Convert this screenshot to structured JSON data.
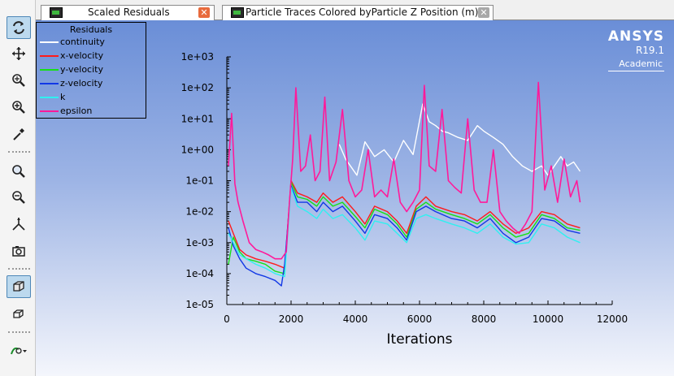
{
  "toolbar": {
    "buttons": [
      {
        "name": "rotate-view-button",
        "glyph": "rotate-icon",
        "active": true
      },
      {
        "name": "pan-button",
        "glyph": "pan-icon",
        "active": false
      },
      {
        "name": "zoom-in-out-button",
        "glyph": "zoom-icon",
        "active": false
      },
      {
        "name": "zoom-to-area-button",
        "glyph": "zoom-plus-icon",
        "active": false
      },
      {
        "name": "probe-button",
        "glyph": "eyedropper-icon",
        "active": false
      },
      {
        "name": "fit-to-window-button",
        "glyph": "zoom-fit-icon",
        "active": false
      },
      {
        "name": "zoom-out-button",
        "glyph": "zoom-minus-icon",
        "active": false
      },
      {
        "name": "axes-button",
        "glyph": "axes-icon",
        "active": false
      },
      {
        "name": "snapshot-button",
        "glyph": "camera-icon",
        "active": false
      },
      {
        "name": "perspective-view-button",
        "glyph": "cube-solid-icon",
        "active": true
      },
      {
        "name": "orthographic-view-button",
        "glyph": "cube-outline-icon",
        "active": false
      },
      {
        "name": "lights-dropdown-button",
        "glyph": "lights-icon",
        "active": false
      }
    ]
  },
  "tabs": [
    {
      "label": "Scaled Residuals",
      "active": true,
      "close_color": "#e86a3c"
    },
    {
      "label": "Particle Traces Colored byParticle Z Position (m)",
      "active": false,
      "close_color": "#a8a8a8"
    }
  ],
  "brand": {
    "name": "ANSYS",
    "version": "R19.1",
    "edition": "Academic"
  },
  "legend": {
    "title": "Residuals",
    "items": [
      {
        "label": "continuity",
        "color": "#ffffff"
      },
      {
        "label": "x-velocity",
        "color": "#ff1a1a"
      },
      {
        "label": "y-velocity",
        "color": "#16e016"
      },
      {
        "label": "z-velocity",
        "color": "#1238e6"
      },
      {
        "label": "k",
        "color": "#30f0f0"
      },
      {
        "label": "epsilon",
        "color": "#ff1a9a"
      }
    ]
  },
  "chart_data": {
    "type": "line",
    "xlabel": "Iterations",
    "ylabel": "",
    "y_scale": "log",
    "xlim": [
      0,
      12000
    ],
    "ylim": [
      1e-05,
      1000
    ],
    "x_ticks": [
      "0",
      "2000",
      "4000",
      "6000",
      "8000",
      "10000",
      "12000"
    ],
    "y_ticks": [
      "1e+03",
      "1e+02",
      "1e+01",
      "1e+00",
      "1e-01",
      "1e-02",
      "1e-03",
      "1e-04",
      "1e-05"
    ],
    "series": [
      {
        "name": "continuity",
        "color": "#ffffff",
        "x": [
          3500,
          3700,
          3900,
          4050,
          4300,
          4600,
          4900,
          5200,
          5500,
          5800,
          6100,
          6300,
          6500,
          6700,
          6900,
          7200,
          7500,
          7800,
          8000,
          8300,
          8600,
          8900,
          9200,
          9500,
          9800,
          10000,
          10200,
          10400,
          10600,
          10800,
          11000
        ],
        "y": [
          1.5,
          0.5,
          0.25,
          0.15,
          1.8,
          0.6,
          1.0,
          0.4,
          2.0,
          0.7,
          30,
          8,
          6,
          4,
          3.5,
          2.5,
          2.0,
          6,
          4,
          2.5,
          1.5,
          0.6,
          0.3,
          0.2,
          0.3,
          0.15,
          0.3,
          0.6,
          0.3,
          0.4,
          0.2
        ]
      },
      {
        "name": "x-velocity",
        "color": "#ff1a1a",
        "x": [
          50,
          200,
          400,
          600,
          900,
          1200,
          1500,
          1800,
          2000,
          2200,
          2500,
          2800,
          3000,
          3300,
          3600,
          4000,
          4300,
          4600,
          5000,
          5300,
          5600,
          5900,
          6200,
          6500,
          7000,
          7400,
          7800,
          8200,
          8600,
          9000,
          9400,
          9800,
          10200,
          10600,
          11000
        ],
        "y": [
          0.005,
          0.002,
          0.0006,
          0.0004,
          0.0003,
          0.00025,
          0.0002,
          0.00015,
          0.1,
          0.04,
          0.03,
          0.02,
          0.04,
          0.02,
          0.03,
          0.01,
          0.004,
          0.015,
          0.01,
          0.005,
          0.002,
          0.015,
          0.03,
          0.015,
          0.01,
          0.008,
          0.005,
          0.01,
          0.004,
          0.002,
          0.003,
          0.01,
          0.008,
          0.004,
          0.003
        ]
      },
      {
        "name": "y-velocity",
        "color": "#16e016",
        "x": [
          50,
          200,
          400,
          600,
          900,
          1200,
          1500,
          1800,
          2000,
          2200,
          2500,
          2800,
          3000,
          3300,
          3600,
          4000,
          4300,
          4600,
          5000,
          5300,
          5600,
          5900,
          6200,
          6500,
          7000,
          7400,
          7800,
          8200,
          8600,
          9000,
          9400,
          9800,
          10200,
          10600,
          11000
        ],
        "y": [
          0.0002,
          0.0015,
          0.0005,
          0.0003,
          0.00025,
          0.0002,
          0.00012,
          0.0001,
          0.09,
          0.03,
          0.025,
          0.015,
          0.03,
          0.015,
          0.02,
          0.007,
          0.003,
          0.012,
          0.008,
          0.004,
          0.0015,
          0.012,
          0.02,
          0.012,
          0.008,
          0.006,
          0.004,
          0.008,
          0.003,
          0.0015,
          0.002,
          0.008,
          0.006,
          0.003,
          0.0025
        ]
      },
      {
        "name": "z-velocity",
        "color": "#1238e6",
        "x": [
          50,
          200,
          400,
          600,
          900,
          1200,
          1500,
          1700,
          1800,
          2000,
          2200,
          2500,
          2800,
          3000,
          3300,
          3600,
          4000,
          4300,
          4600,
          5000,
          5300,
          5600,
          5900,
          6200,
          6500,
          7000,
          7400,
          7800,
          8200,
          8600,
          9000,
          9400,
          9800,
          10200,
          10600,
          11000
        ],
        "y": [
          0.003,
          0.0008,
          0.0003,
          0.00015,
          0.0001,
          8e-05,
          6e-05,
          4e-05,
          0.0002,
          0.07,
          0.02,
          0.02,
          0.01,
          0.02,
          0.01,
          0.015,
          0.005,
          0.002,
          0.008,
          0.006,
          0.003,
          0.0012,
          0.01,
          0.015,
          0.01,
          0.006,
          0.005,
          0.003,
          0.006,
          0.002,
          0.001,
          0.0015,
          0.006,
          0.005,
          0.0025,
          0.002
        ]
      },
      {
        "name": "k",
        "color": "#30f0f0",
        "x": [
          50,
          200,
          400,
          600,
          900,
          1200,
          1500,
          1800,
          2000,
          2200,
          2500,
          2800,
          3000,
          3300,
          3600,
          4000,
          4300,
          4600,
          5000,
          5300,
          5600,
          5900,
          6200,
          6500,
          7000,
          7400,
          7800,
          8200,
          8600,
          9000,
          9400,
          9800,
          10200,
          10600,
          11000
        ],
        "y": [
          0.002,
          0.001,
          0.0004,
          0.0003,
          0.0002,
          0.00015,
          0.0001,
          8e-05,
          0.06,
          0.015,
          0.01,
          0.006,
          0.012,
          0.006,
          0.008,
          0.003,
          0.0012,
          0.005,
          0.004,
          0.002,
          0.001,
          0.006,
          0.008,
          0.006,
          0.004,
          0.003,
          0.002,
          0.004,
          0.0015,
          0.0009,
          0.001,
          0.004,
          0.003,
          0.0015,
          0.001
        ]
      },
      {
        "name": "epsilon",
        "color": "#ff1a9a",
        "x": [
          50,
          150,
          250,
          350,
          500,
          700,
          900,
          1100,
          1300,
          1500,
          1700,
          1850,
          1950,
          2050,
          2150,
          2300,
          2450,
          2600,
          2750,
          2900,
          3050,
          3200,
          3400,
          3600,
          3800,
          4000,
          4200,
          4400,
          4600,
          4800,
          5000,
          5200,
          5400,
          5600,
          5800,
          6000,
          6150,
          6300,
          6500,
          6700,
          6900,
          7100,
          7300,
          7500,
          7700,
          7900,
          8100,
          8300,
          8500,
          8700,
          8900,
          9100,
          9300,
          9500,
          9700,
          9900,
          10100,
          10300,
          10500,
          10700,
          10900,
          11000
        ],
        "y": [
          0.3,
          15,
          0.08,
          0.02,
          0.005,
          0.001,
          0.0006,
          0.0005,
          0.0004,
          0.0003,
          0.0003,
          0.0005,
          0.02,
          0.5,
          100,
          0.2,
          0.3,
          3,
          0.1,
          0.2,
          50,
          0.1,
          0.4,
          20,
          0.1,
          0.03,
          0.05,
          1.0,
          0.03,
          0.05,
          0.03,
          0.5,
          0.02,
          0.01,
          0.02,
          0.05,
          120,
          0.3,
          0.2,
          20,
          0.1,
          0.06,
          0.04,
          10,
          0.05,
          0.02,
          0.02,
          1,
          0.01,
          0.005,
          0.003,
          0.002,
          0.004,
          0.01,
          150,
          0.05,
          0.3,
          0.02,
          0.5,
          0.03,
          0.1,
          0.02
        ]
      }
    ]
  }
}
